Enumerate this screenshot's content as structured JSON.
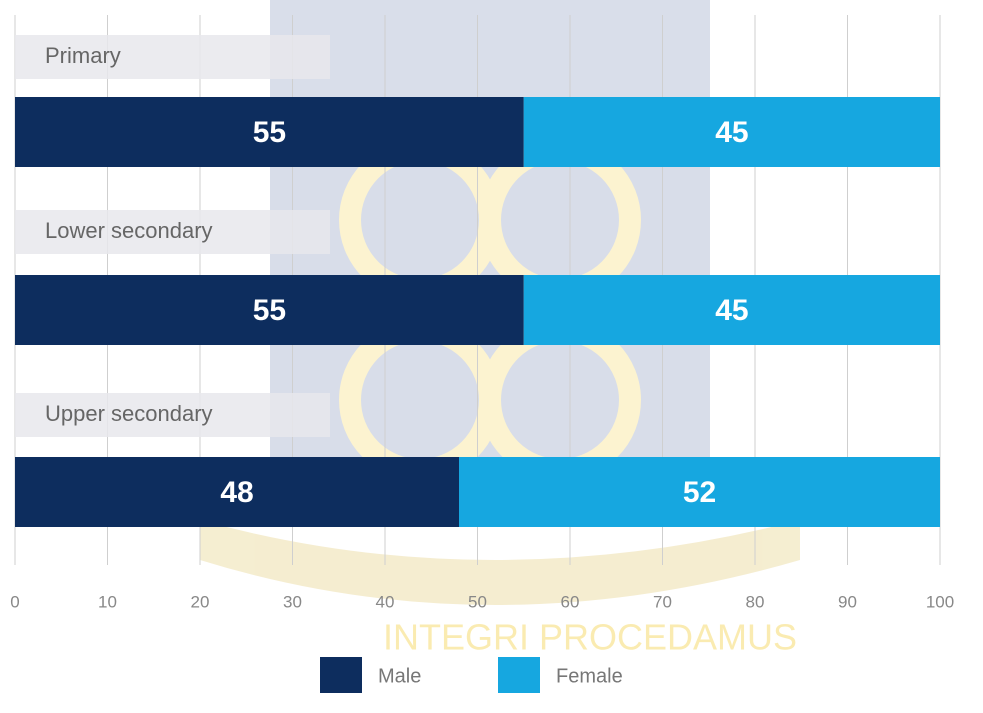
{
  "chart_data": {
    "type": "stacked-bar-horizontal",
    "categories": [
      "Primary",
      "Lower secondary",
      "Upper secondary"
    ],
    "series": [
      {
        "name": "Male",
        "color": "#0d2d5e",
        "values": [
          55,
          55,
          48
        ]
      },
      {
        "name": "Female",
        "color": "#16a7e0",
        "values": [
          45,
          45,
          52
        ]
      }
    ],
    "xlim": [
      0,
      100
    ],
    "xticks": [
      0,
      10,
      20,
      30,
      40,
      50,
      60,
      70,
      80,
      90,
      100
    ],
    "grid": true,
    "watermark": "INTEGRI PROCEDAMUS"
  }
}
